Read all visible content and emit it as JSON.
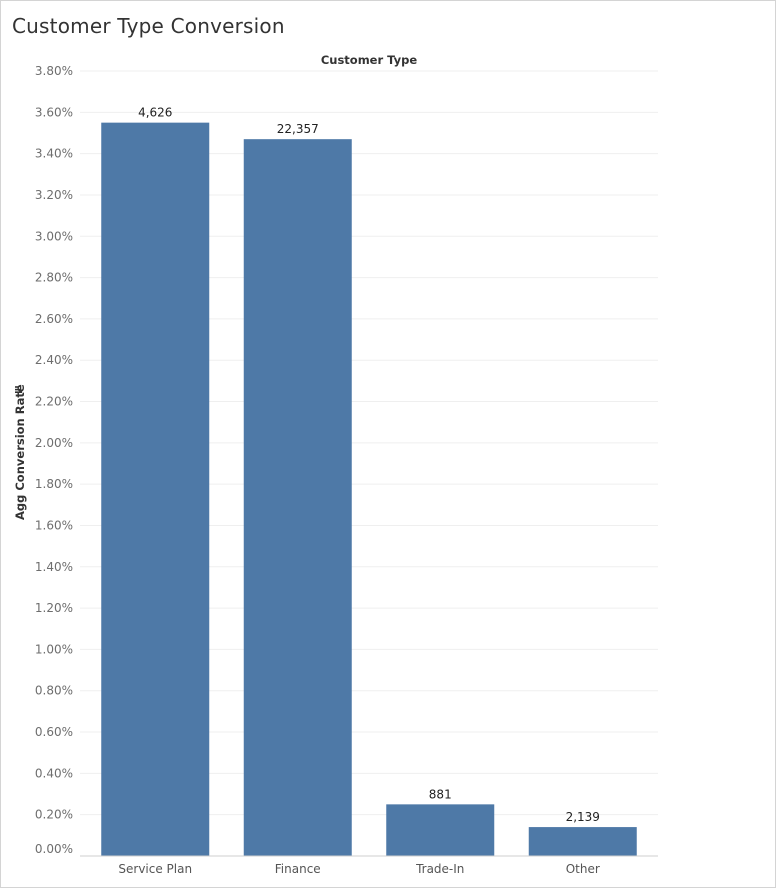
{
  "chart_data": {
    "type": "bar",
    "title": "Customer Type Conversion",
    "column_header": "Customer Type",
    "ylabel": "Agg Conversion Rate",
    "ylim": [
      0,
      3.8
    ],
    "yticks": [
      "0.00%",
      "0.20%",
      "0.40%",
      "0.60%",
      "0.80%",
      "1.00%",
      "1.20%",
      "1.40%",
      "1.60%",
      "1.80%",
      "2.00%",
      "2.20%",
      "2.40%",
      "2.60%",
      "2.80%",
      "3.00%",
      "3.20%",
      "3.40%",
      "3.60%",
      "3.80%"
    ],
    "categories": [
      "Service Plan",
      "Finance",
      "Trade-In",
      "Other"
    ],
    "values": [
      3.55,
      3.47,
      0.25,
      0.14
    ],
    "data_labels": [
      "4,626",
      "22,357",
      "881",
      "2,139"
    ],
    "bar_color": "#4e79a7",
    "gridlines": true,
    "sort_icon": "sort-descending-icon"
  }
}
